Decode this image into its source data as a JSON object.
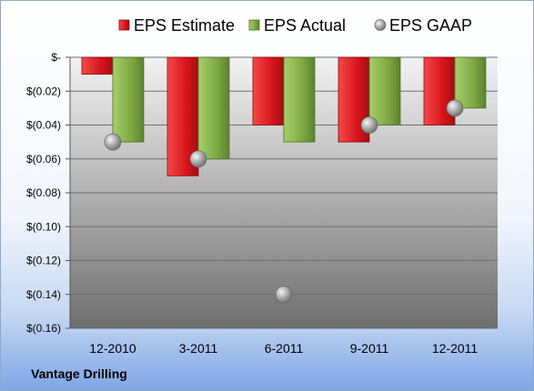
{
  "chart_data": {
    "type": "bar",
    "categories": [
      "12-2010",
      "3-2011",
      "6-2011",
      "9-2011",
      "12-2011"
    ],
    "series": [
      {
        "name": "EPS Estimate",
        "values": [
          -0.01,
          -0.07,
          -0.04,
          -0.05,
          -0.04
        ],
        "color": "#e0262b",
        "kind": "bar"
      },
      {
        "name": "EPS Actual",
        "values": [
          -0.05,
          -0.06,
          -0.05,
          -0.04,
          -0.03
        ],
        "color": "#86b347",
        "kind": "bar"
      },
      {
        "name": "EPS GAAP",
        "values": [
          -0.05,
          -0.06,
          -0.14,
          -0.04,
          -0.03
        ],
        "color": "#9a9a9a",
        "kind": "marker"
      }
    ],
    "y_ticks": [
      "$-",
      "$(0.02)",
      "$(0.04)",
      "$(0.06)",
      "$(0.08)",
      "$(0.10)",
      "$(0.12)",
      "$(0.14)",
      "$(0.16)"
    ],
    "ylim": [
      -0.16,
      0
    ],
    "grid": true,
    "legend_position": "top"
  },
  "footer": {
    "company": "Vantage Drilling"
  }
}
